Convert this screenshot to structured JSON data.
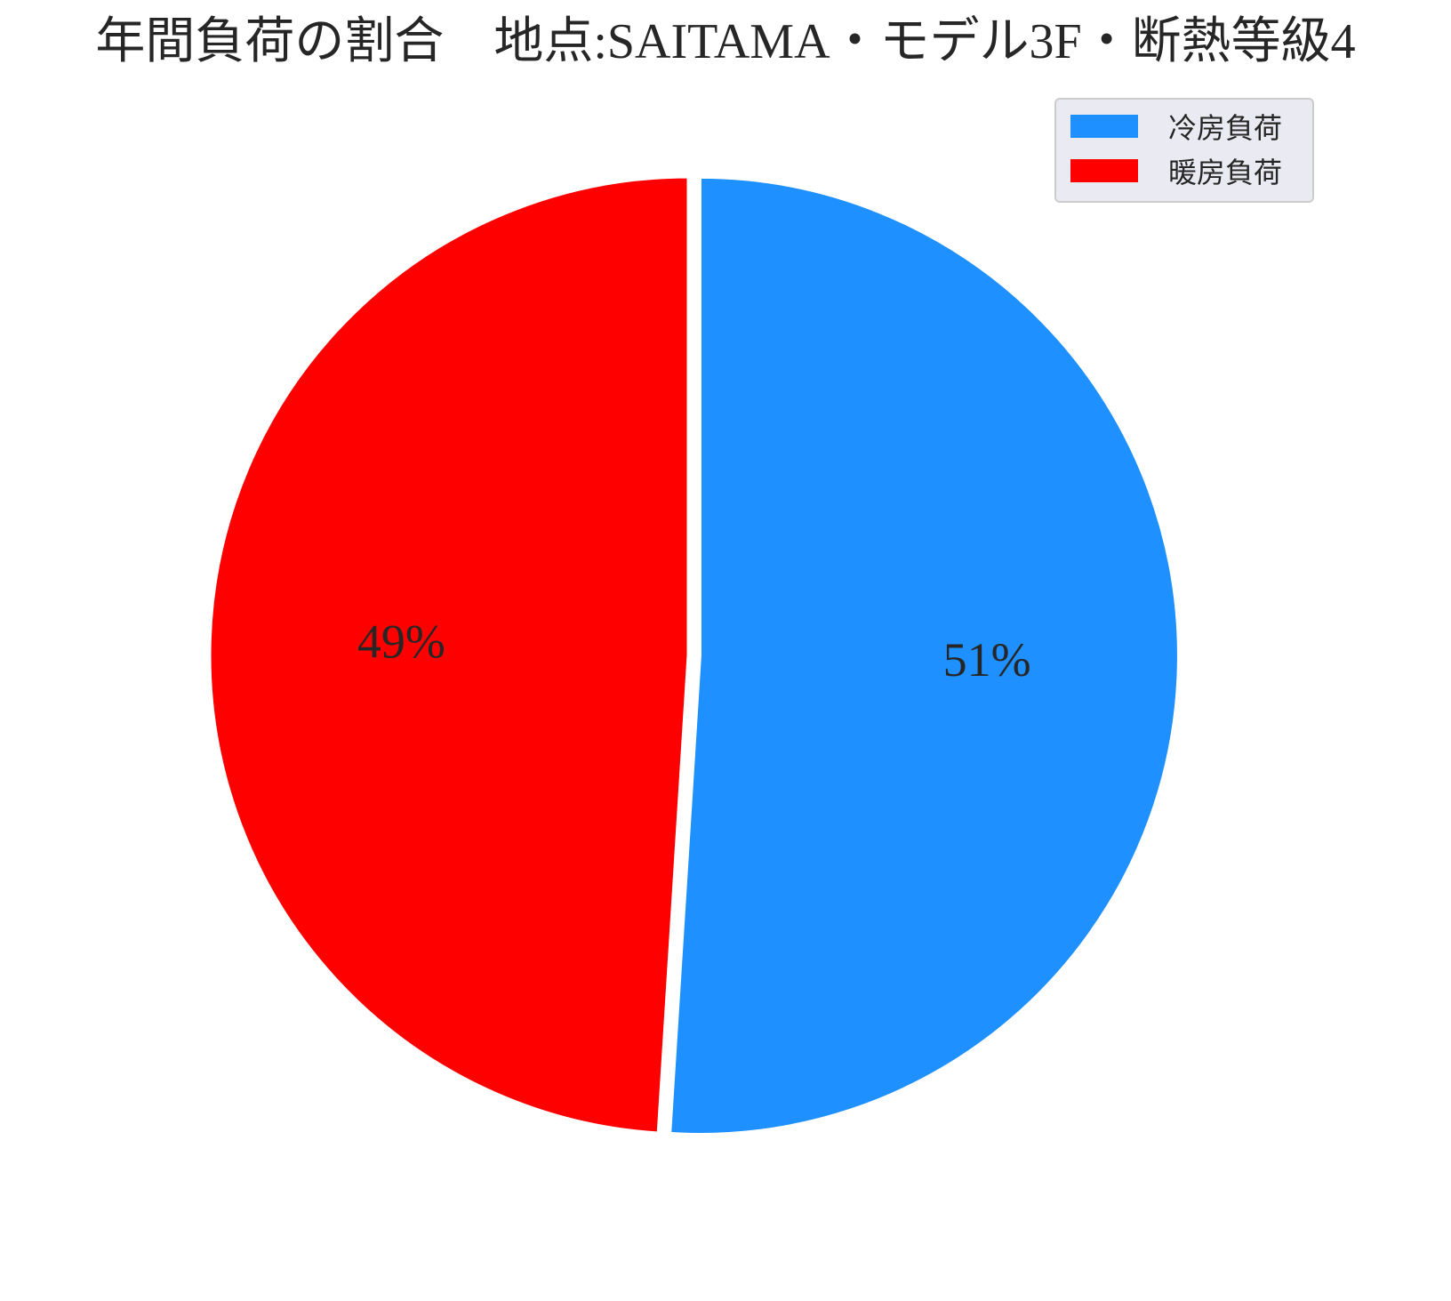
{
  "chart_data": {
    "type": "pie",
    "title": "年間負荷の割合　地点:SAITAMA・モデル3F・断熱等級4",
    "slices": [
      {
        "label": "冷房負荷",
        "value": 51,
        "pct_label": "51%",
        "color": "#1e90ff"
      },
      {
        "label": "暖房負荷",
        "value": 49,
        "pct_label": "49%",
        "color": "#ff0000"
      }
    ],
    "start_angle_deg": 90,
    "direction": "clockwise",
    "explode": [
      0.025,
      0
    ],
    "legend": {
      "position": "top-right",
      "entries": [
        "冷房負荷",
        "暖房負荷"
      ]
    }
  }
}
